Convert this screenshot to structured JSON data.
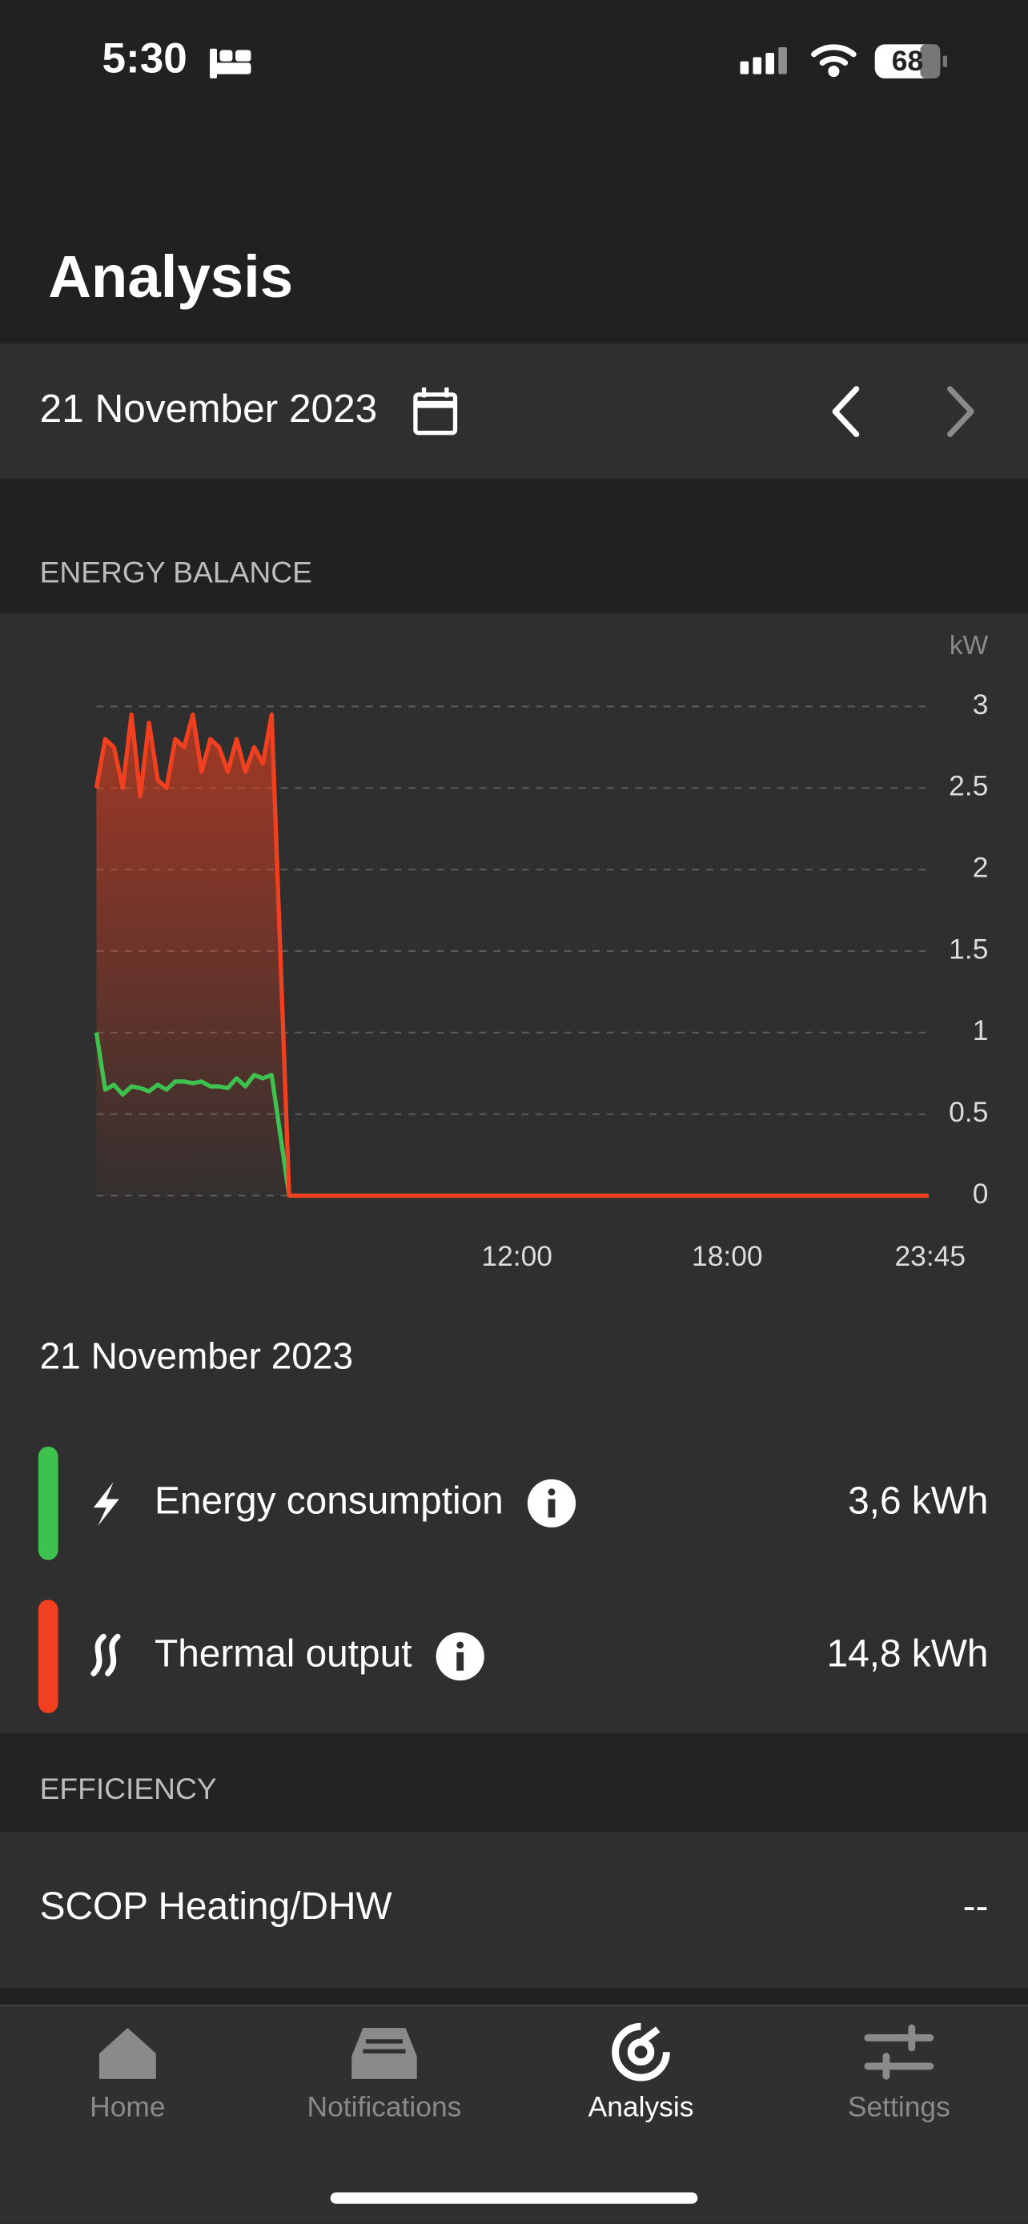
{
  "status_bar": {
    "time": "5:30",
    "battery": "68"
  },
  "header": {
    "title": "Analysis"
  },
  "date_bar": {
    "date": "21 November 2023"
  },
  "energy_balance": {
    "section_title": "ENERGY BALANCE"
  },
  "chart_data": {
    "type": "line",
    "y_label": "kW",
    "x": [
      0,
      0.25,
      0.5,
      0.75,
      1,
      1.25,
      1.5,
      1.75,
      2,
      2.25,
      2.5,
      2.75,
      3,
      3.25,
      3.5,
      3.75,
      4,
      4.25,
      4.5,
      4.75,
      5,
      5.5,
      23.75
    ],
    "xlim": [
      0,
      23.75
    ],
    "xticks": [
      {
        "value": 12,
        "label": "12:00"
      },
      {
        "value": 18,
        "label": "18:00"
      },
      {
        "value": 23.75,
        "label": "23:45"
      }
    ],
    "ylim": [
      0,
      3
    ],
    "yticks": [
      0,
      0.5,
      1,
      1.5,
      2,
      2.5,
      3
    ],
    "grid": true,
    "series": [
      {
        "name": "Energy consumption",
        "color": "#3ec24f",
        "values": [
          1.0,
          0.65,
          0.68,
          0.62,
          0.67,
          0.66,
          0.64,
          0.68,
          0.65,
          0.7,
          0.7,
          0.69,
          0.7,
          0.67,
          0.67,
          0.66,
          0.72,
          0.67,
          0.74,
          0.72,
          0.74,
          0,
          0
        ]
      },
      {
        "name": "Thermal output",
        "color": "#f1401f",
        "fill": true,
        "values": [
          2.5,
          2.8,
          2.75,
          2.5,
          2.95,
          2.45,
          2.9,
          2.55,
          2.5,
          2.8,
          2.75,
          2.95,
          2.6,
          2.8,
          2.75,
          2.6,
          2.8,
          2.6,
          2.75,
          2.65,
          2.95,
          0,
          0
        ]
      }
    ]
  },
  "summary": {
    "date": "21 November 2023",
    "totals": [
      "3,6 kWh",
      "14,8 kWh"
    ]
  },
  "efficiency": {
    "section_title": "EFFICIENCY",
    "rows": [
      {
        "label": "SCOP Heating/DHW",
        "value": "--"
      }
    ]
  },
  "tab_bar": {
    "tabs": [
      "Home",
      "Notifications",
      "Analysis",
      "Settings"
    ]
  }
}
